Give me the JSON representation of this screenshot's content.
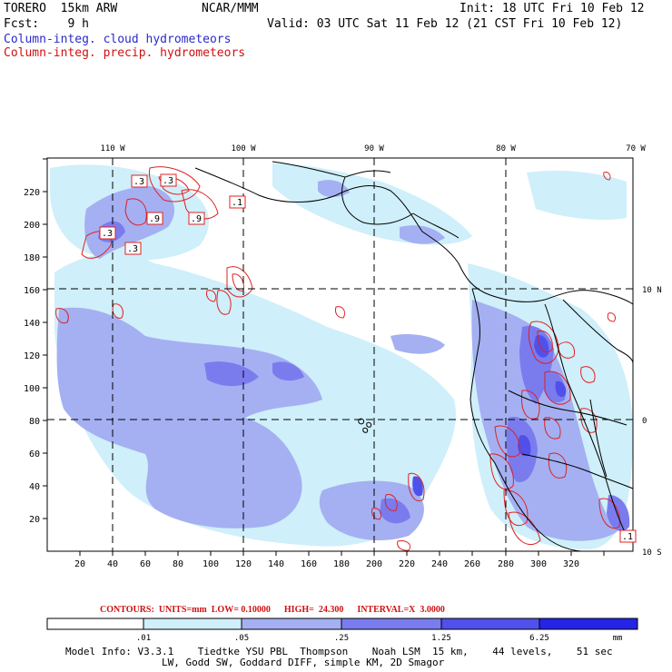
{
  "header": {
    "model": "TORERO  15km ARW",
    "org": "NCAR/MMM",
    "init": "Init: 18 UTC Fri 10 Feb 12",
    "fcst": "Fcst:    9 h",
    "valid": "Valid: 03 UTC Sat 11 Feb 12 (21 CST Fri 10 Feb 12)",
    "field1": "Column-integ. cloud hydrometeors",
    "field2": "Column-integ. precip. hydrometeors"
  },
  "colors": {
    "cloud_label": "#2a2acc",
    "precip": "#d01010",
    "shade_levels": [
      "#ffffff",
      "#cfeffa",
      "#a4b0f2",
      "#7a7cee",
      "#5050ea",
      "#2424e6"
    ]
  },
  "axes": {
    "x_ticks": [
      "20",
      "40",
      "60",
      "80",
      "100",
      "120",
      "140",
      "160",
      "180",
      "200",
      "220",
      "240",
      "260",
      "280",
      "300",
      "320"
    ],
    "y_ticks": [
      "20",
      "40",
      "60",
      "80",
      "100",
      "120",
      "140",
      "160",
      "180",
      "200",
      "220"
    ],
    "lon_labels": [
      "110 W",
      "100 W",
      "90 W",
      "80 W",
      "70 W"
    ],
    "lat_labels": [
      "10 N",
      "0",
      "10 S"
    ]
  },
  "contour_labels": [
    ".3",
    ".3",
    ".1",
    ".9",
    ".9",
    ".3",
    ".3",
    ".1"
  ],
  "contour_info": "CONTOURS:  UNITS=mm  LOW= 0.10000      HIGH=  24.300      INTERVAL=X  3.0000",
  "colorbar": {
    "labels": [
      ".01",
      ".05",
      ".25",
      "1.25",
      "6.25"
    ],
    "units": "mm"
  },
  "footer": {
    "line1": "Model Info: V3.3.1    Tiedtke YSU PBL  Thompson    Noah LSM  15 km,    44 levels,    51 sec",
    "line2": "                LW, Godd SW, Goddard DIFF, simple KM, 2D Smagor"
  }
}
